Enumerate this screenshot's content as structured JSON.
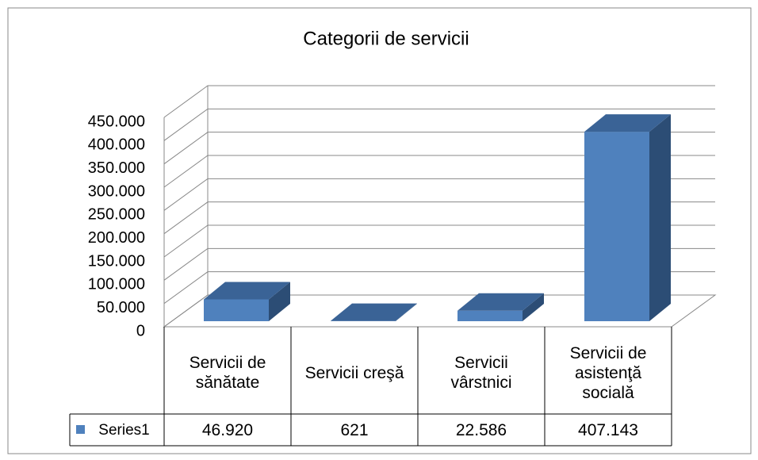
{
  "chart_data": {
    "type": "bar3d",
    "title": "Categorii de servicii",
    "categories": [
      "Servicii de sănătate",
      "Servicii creşă",
      "Servicii vârstnici",
      "Servicii de asistenţă socială"
    ],
    "series": [
      {
        "name": "Series1",
        "color": "#4f81bd",
        "values": [
          46920,
          621,
          22586,
          407143
        ],
        "value_labels": [
          "46.920",
          "621",
          "22.586",
          "407.143"
        ]
      }
    ],
    "ylim": [
      0,
      450000
    ],
    "yticks": [
      0,
      {
        "value": 50000,
        "label": "50.000"
      },
      {
        "value": 100000,
        "label": "100.000"
      },
      {
        "value": 150000,
        "label": "150.000"
      },
      {
        "value": 200000,
        "label": "200.000"
      },
      {
        "value": 250000,
        "label": "250.000"
      },
      {
        "value": 300000,
        "label": "300.000"
      },
      {
        "value": 350000,
        "label": "350.000"
      },
      {
        "value": 400000,
        "label": "400.000"
      },
      {
        "value": 450000,
        "label": "450.000"
      }
    ],
    "grid": true,
    "data_table": true
  }
}
